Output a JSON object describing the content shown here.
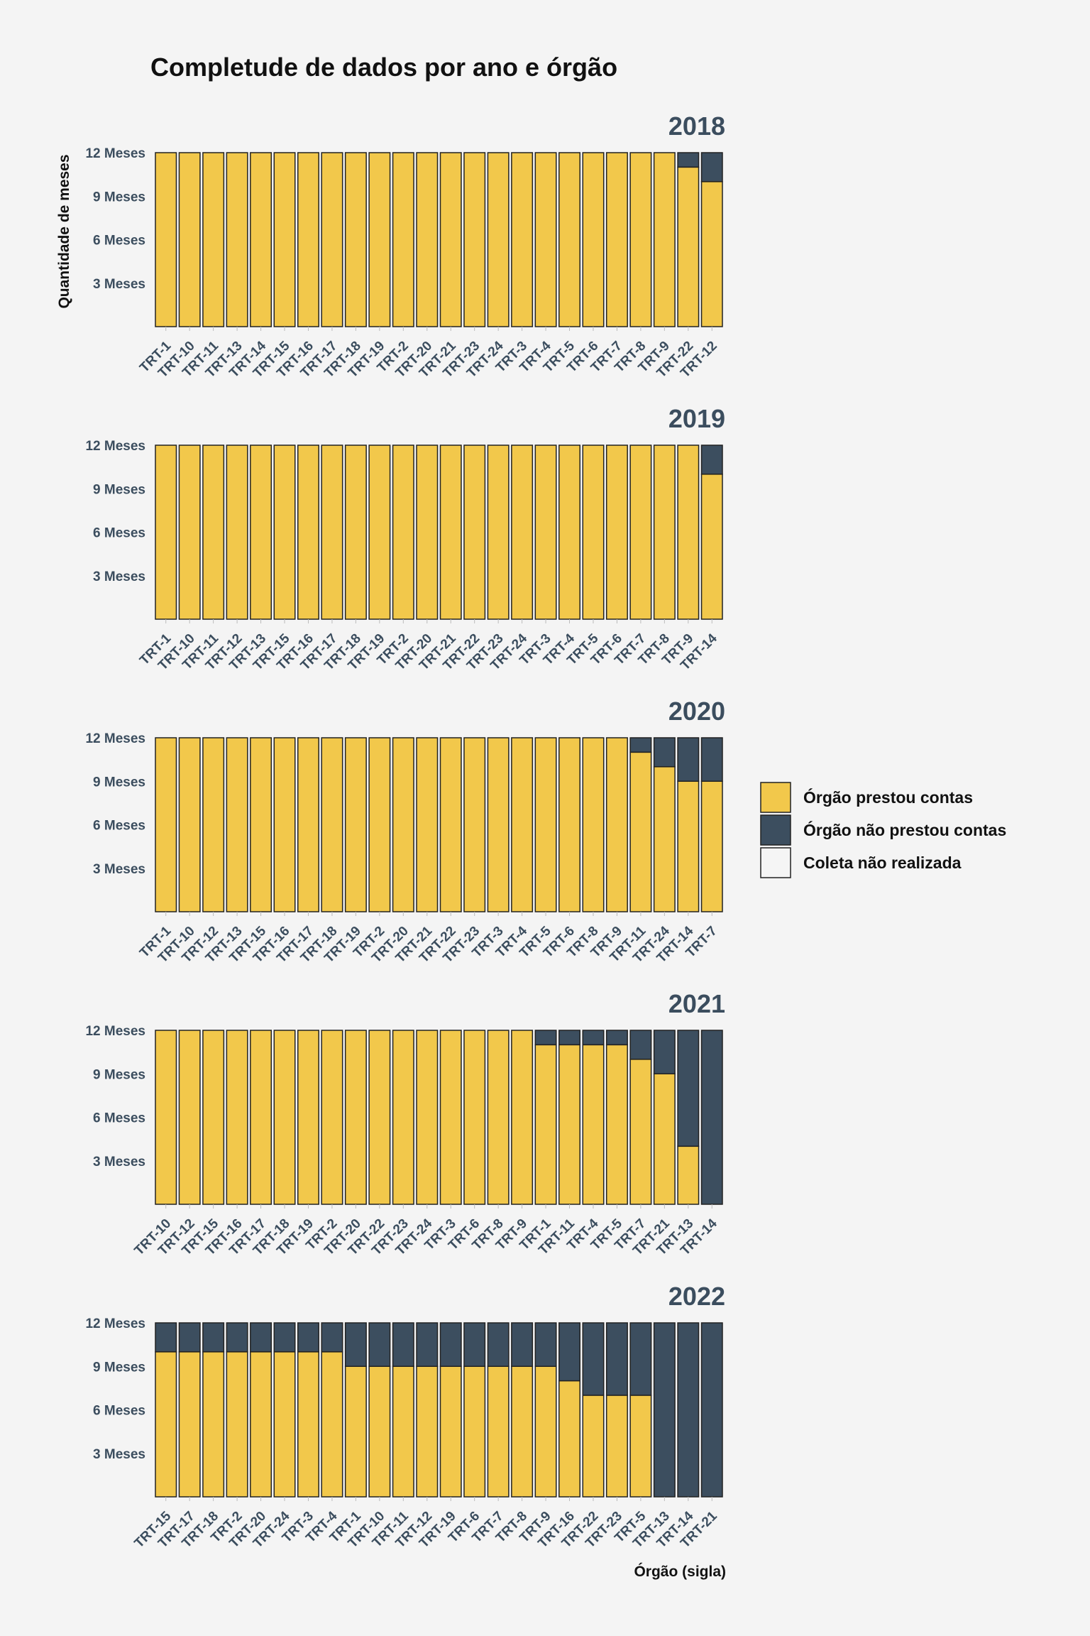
{
  "chart_data": {
    "type": "bar",
    "stacked": true,
    "title": "Completude de dados por ano e órgão",
    "xlabel": "Órgão (sigla)",
    "ylabel": "Quantidade de meses",
    "ylim": [
      0,
      12
    ],
    "yticks": [
      "3 Meses",
      "6 Meses",
      "9 Meses",
      "12 Meses"
    ],
    "ytick_values": [
      3,
      6,
      9,
      12
    ],
    "legend": {
      "position": "right",
      "entries": [
        {
          "label": "Órgão prestou contas",
          "color": "#f2c84b"
        },
        {
          "label": "Órgão não prestou contas",
          "color": "#3c4e5f"
        },
        {
          "label": "Coleta não realizada",
          "color": "#f5f5f5"
        }
      ]
    },
    "panels": [
      {
        "year": "2018",
        "categories": [
          "TRT-1",
          "TRT-10",
          "TRT-11",
          "TRT-13",
          "TRT-14",
          "TRT-15",
          "TRT-16",
          "TRT-17",
          "TRT-18",
          "TRT-19",
          "TRT-2",
          "TRT-20",
          "TRT-21",
          "TRT-23",
          "TRT-24",
          "TRT-3",
          "TRT-4",
          "TRT-5",
          "TRT-6",
          "TRT-7",
          "TRT-8",
          "TRT-9",
          "TRT-22",
          "TRT-12"
        ],
        "prestou": [
          12,
          12,
          12,
          12,
          12,
          12,
          12,
          12,
          12,
          12,
          12,
          12,
          12,
          12,
          12,
          12,
          12,
          12,
          12,
          12,
          12,
          12,
          11,
          10
        ],
        "nao_prestou": [
          0,
          0,
          0,
          0,
          0,
          0,
          0,
          0,
          0,
          0,
          0,
          0,
          0,
          0,
          0,
          0,
          0,
          0,
          0,
          0,
          0,
          0,
          1,
          2
        ]
      },
      {
        "year": "2019",
        "categories": [
          "TRT-1",
          "TRT-10",
          "TRT-11",
          "TRT-12",
          "TRT-13",
          "TRT-15",
          "TRT-16",
          "TRT-17",
          "TRT-18",
          "TRT-19",
          "TRT-2",
          "TRT-20",
          "TRT-21",
          "TRT-22",
          "TRT-23",
          "TRT-24",
          "TRT-3",
          "TRT-4",
          "TRT-5",
          "TRT-6",
          "TRT-7",
          "TRT-8",
          "TRT-9",
          "TRT-14"
        ],
        "prestou": [
          12,
          12,
          12,
          12,
          12,
          12,
          12,
          12,
          12,
          12,
          12,
          12,
          12,
          12,
          12,
          12,
          12,
          12,
          12,
          12,
          12,
          12,
          12,
          10
        ],
        "nao_prestou": [
          0,
          0,
          0,
          0,
          0,
          0,
          0,
          0,
          0,
          0,
          0,
          0,
          0,
          0,
          0,
          0,
          0,
          0,
          0,
          0,
          0,
          0,
          0,
          2
        ]
      },
      {
        "year": "2020",
        "categories": [
          "TRT-1",
          "TRT-10",
          "TRT-12",
          "TRT-13",
          "TRT-15",
          "TRT-16",
          "TRT-17",
          "TRT-18",
          "TRT-19",
          "TRT-2",
          "TRT-20",
          "TRT-21",
          "TRT-22",
          "TRT-23",
          "TRT-3",
          "TRT-4",
          "TRT-5",
          "TRT-6",
          "TRT-8",
          "TRT-9",
          "TRT-11",
          "TRT-24",
          "TRT-14",
          "TRT-7"
        ],
        "prestou": [
          12,
          12,
          12,
          12,
          12,
          12,
          12,
          12,
          12,
          12,
          12,
          12,
          12,
          12,
          12,
          12,
          12,
          12,
          12,
          12,
          11,
          10,
          9,
          9
        ],
        "nao_prestou": [
          0,
          0,
          0,
          0,
          0,
          0,
          0,
          0,
          0,
          0,
          0,
          0,
          0,
          0,
          0,
          0,
          0,
          0,
          0,
          0,
          1,
          2,
          3,
          3
        ]
      },
      {
        "year": "2021",
        "categories": [
          "TRT-10",
          "TRT-12",
          "TRT-15",
          "TRT-16",
          "TRT-17",
          "TRT-18",
          "TRT-19",
          "TRT-2",
          "TRT-20",
          "TRT-22",
          "TRT-23",
          "TRT-24",
          "TRT-3",
          "TRT-6",
          "TRT-8",
          "TRT-9",
          "TRT-1",
          "TRT-11",
          "TRT-4",
          "TRT-5",
          "TRT-7",
          "TRT-21",
          "TRT-13",
          "TRT-14"
        ],
        "prestou": [
          12,
          12,
          12,
          12,
          12,
          12,
          12,
          12,
          12,
          12,
          12,
          12,
          12,
          12,
          12,
          12,
          11,
          11,
          11,
          11,
          10,
          9,
          4,
          0
        ],
        "nao_prestou": [
          0,
          0,
          0,
          0,
          0,
          0,
          0,
          0,
          0,
          0,
          0,
          0,
          0,
          0,
          0,
          0,
          1,
          1,
          1,
          1,
          2,
          3,
          8,
          12
        ]
      },
      {
        "year": "2022",
        "categories": [
          "TRT-15",
          "TRT-17",
          "TRT-18",
          "TRT-2",
          "TRT-20",
          "TRT-24",
          "TRT-3",
          "TRT-4",
          "TRT-1",
          "TRT-10",
          "TRT-11",
          "TRT-12",
          "TRT-19",
          "TRT-6",
          "TRT-7",
          "TRT-8",
          "TRT-9",
          "TRT-16",
          "TRT-22",
          "TRT-23",
          "TRT-5",
          "TRT-13",
          "TRT-14",
          "TRT-21"
        ],
        "prestou": [
          10,
          10,
          10,
          10,
          10,
          10,
          10,
          10,
          9,
          9,
          9,
          9,
          9,
          9,
          9,
          9,
          9,
          8,
          7,
          7,
          7,
          0,
          0,
          0
        ],
        "nao_prestou": [
          2,
          2,
          2,
          2,
          2,
          2,
          2,
          2,
          3,
          3,
          3,
          3,
          3,
          3,
          3,
          3,
          3,
          4,
          5,
          5,
          5,
          12,
          12,
          12
        ]
      }
    ]
  }
}
